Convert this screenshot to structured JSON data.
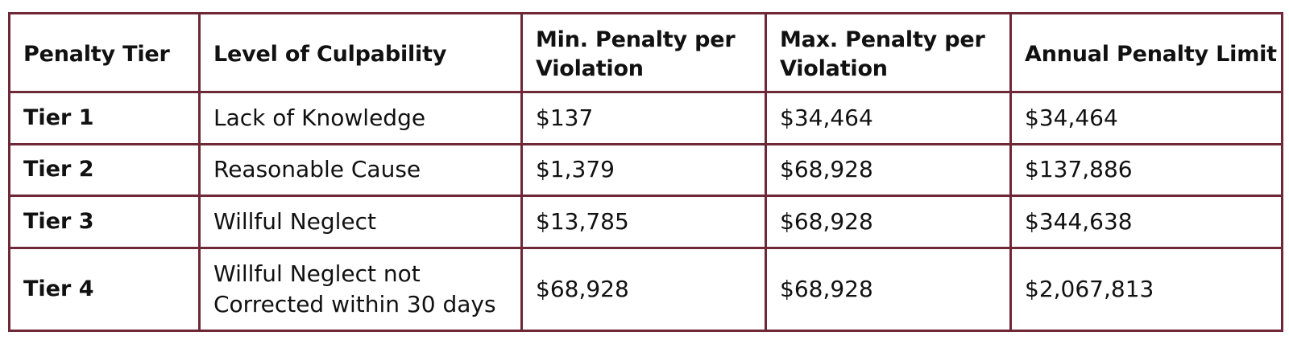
{
  "table": {
    "headers": [
      "Penalty Tier",
      "Level of Culpability",
      "Min. Penalty per Violation",
      "Max. Penalty per Violation",
      "Annual Penalty Limit"
    ],
    "rows": [
      {
        "tier": "Tier 1",
        "culpability": "Lack of Knowledge",
        "min": "$137",
        "max": "$34,464",
        "annual": "$34,464"
      },
      {
        "tier": "Tier 2",
        "culpability": "Reasonable Cause",
        "min": "$1,379",
        "max": "$68,928",
        "annual": "$137,886"
      },
      {
        "tier": "Tier 3",
        "culpability": "Willful Neglect",
        "min": "$13,785",
        "max": "$68,928",
        "annual": "$344,638"
      },
      {
        "tier": "Tier 4",
        "culpability": "Willful Neglect not Corrected within 30 days",
        "min": "$68,928",
        "max": "$68,928",
        "annual": "$2,067,813"
      }
    ]
  },
  "colors": {
    "border": "#6e2838",
    "text": "#111111"
  }
}
